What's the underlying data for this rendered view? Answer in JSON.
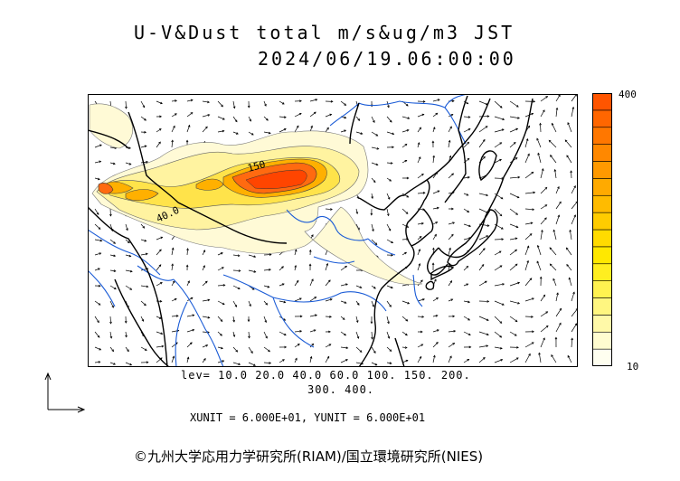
{
  "header": {
    "title_line1": "U-V&Dust total m/s&ug/m3 JST",
    "title_line2": "2024/06/19.06:00:00"
  },
  "colorbar": {
    "max_label": "400",
    "min_label": "10",
    "colors": [
      "#fffff0",
      "#fffcd0",
      "#fff9a8",
      "#fff680",
      "#fff250",
      "#ffee20",
      "#ffe800",
      "#ffdb00",
      "#ffcc00",
      "#ffbb00",
      "#ffaa00",
      "#ff9900",
      "#ff8800",
      "#ff7700",
      "#ff6600",
      "#ff5500"
    ]
  },
  "levels": {
    "line1": "lev= 10.0 20.0 40.0 60.0 100. 150. 200.",
    "line2": "300. 400."
  },
  "units_text": "XUNIT = 6.000E+01, YUNIT = 6.000E+01",
  "copyright": "©九州大学応用力学研究所(RIAM)/国立環境研究所(NIES)",
  "map_labels": {
    "contour_150": "150",
    "contour_40": "40.0"
  }
}
